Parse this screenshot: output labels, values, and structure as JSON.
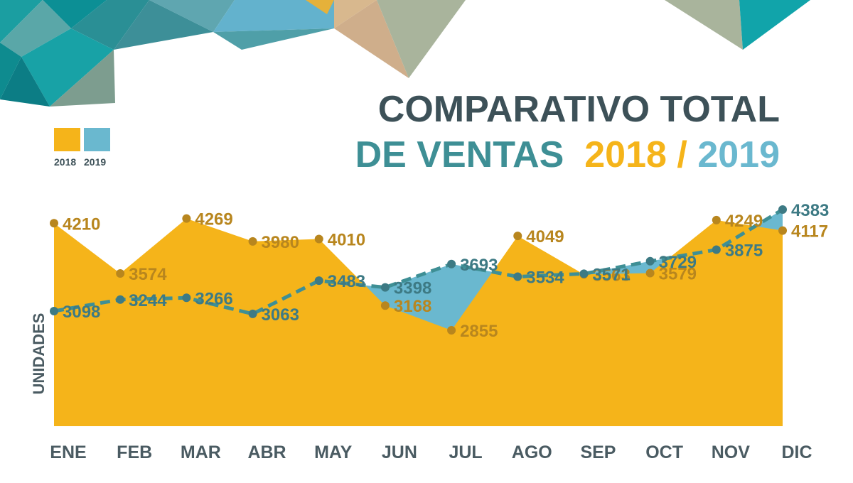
{
  "title": {
    "line1": "COMPARATIVO TOTAL",
    "line2_main": "DE VENTAS",
    "line2_year_a": "2018",
    "line2_sep": "/",
    "line2_year_b": "2019"
  },
  "legend": [
    {
      "label": "2018",
      "color": "#f5b41a"
    },
    {
      "label": "2019",
      "color": "#6ab8cf"
    }
  ],
  "colors": {
    "series_2018": "#f5b41a",
    "series_2018_labels": "#b8861e",
    "series_2019_fill": "#6ab8cf",
    "series_2019_line": "#3e8f95",
    "series_2019_labels": "#3d7a84",
    "axis_text": "#4a5b62"
  },
  "chart_data": {
    "type": "area",
    "title": "COMPARATIVO TOTAL DE VENTAS 2018 / 2019",
    "xlabel": "",
    "ylabel": "UNIDADES",
    "categories": [
      "ENE",
      "FEB",
      "MAR",
      "ABR",
      "MAY",
      "JUN",
      "JUL",
      "AGO",
      "SEP",
      "OCT",
      "NOV",
      "DIC"
    ],
    "series": [
      {
        "name": "2018",
        "style": "filled area",
        "values": [
          4210,
          3574,
          4269,
          3980,
          4010,
          3168,
          2855,
          4049,
          3563,
          3579,
          4249,
          4117
        ]
      },
      {
        "name": "2019",
        "style": "dashed line with filled difference",
        "values": [
          3098,
          3244,
          3266,
          3063,
          3483,
          3398,
          3693,
          3534,
          3571,
          3729,
          3875,
          4383
        ]
      }
    ],
    "grid": false,
    "legend_position": "top-left"
  }
}
